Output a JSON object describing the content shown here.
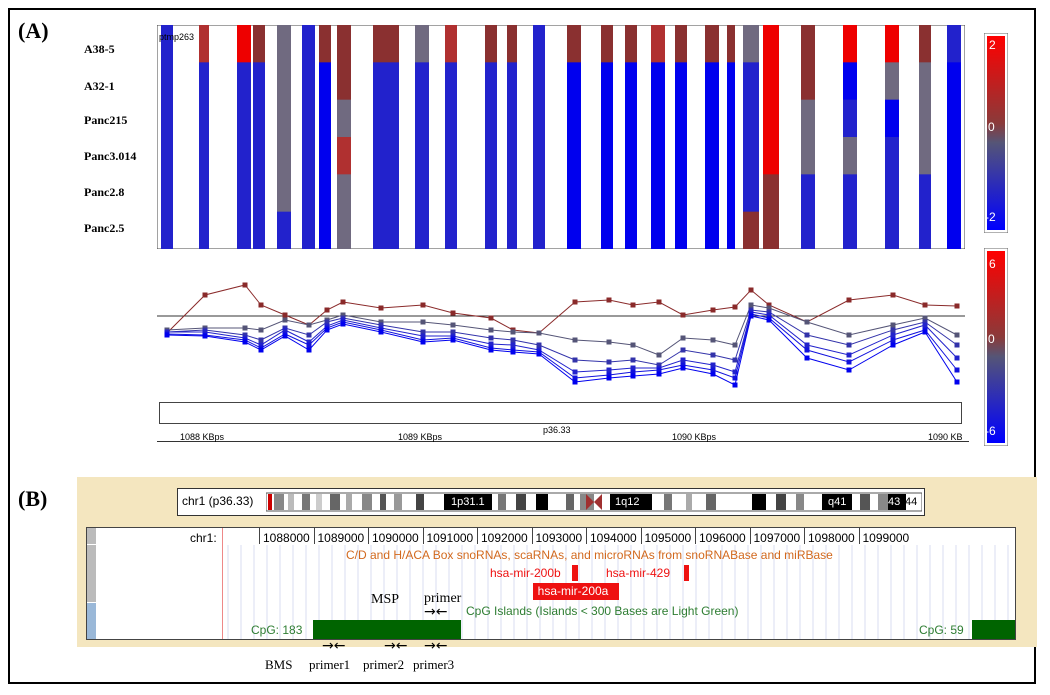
{
  "panel_a": {
    "label": "(A)",
    "heatmap_tag": "ptmp263",
    "line_tag": "ptmp263",
    "samples": [
      "A38-5",
      "A32-1",
      "Panc215",
      "Panc3.014",
      "Panc2.8",
      "Panc2.5"
    ],
    "heat_scale": {
      "top": "2",
      "mid": "0",
      "bottom": "-2"
    },
    "line_scale": {
      "top": "6",
      "mid": "0",
      "bottom": "-6"
    },
    "band": "p36.33",
    "axis_ticks": [
      "1088 KBps",
      "1089 KBps",
      "1090 KBps",
      "1090 KB"
    ],
    "colors": {
      "red": "#cc0000",
      "blue": "#0000ee",
      "grey": "#777777"
    }
  },
  "panel_b": {
    "label": "(B)",
    "chrom_label": "chr1 (p36.33)",
    "ideogram_bands": [
      "1p31.1",
      "1q12",
      "q41",
      "43",
      "44"
    ],
    "ruler_label": "chr1:",
    "ruler_ticks": [
      "1088000",
      "1089000",
      "1090000",
      "1091000",
      "1092000",
      "1093000",
      "1094000",
      "1095000",
      "1096000",
      "1097000",
      "1098000",
      "1099000"
    ],
    "snorna_track": "C/D and H/ACA Box snoRNAs, scaRNAs, and microRNAs from snoRNABase and miRBase",
    "mirnas": [
      "hsa-mir-200b",
      "hsa-mir-429",
      "hsa-mir-200a"
    ],
    "cpg_track": "CpG Islands (Islands < 300 Bases are Light Green)",
    "cpg_left": "CpG: 183",
    "cpg_right": "CpG: 59",
    "msp": "MSP",
    "primer_top": "primer",
    "bms": "BMS",
    "primers": [
      "primer1",
      "primer2",
      "primer3"
    ],
    "arrow_glyph_pair": "→←",
    "colors": {
      "track_orange": "#d2691e",
      "mir_red": "#ee1111",
      "cpg_green": "#006400",
      "cpg_text": "#2e7d32"
    }
  }
}
